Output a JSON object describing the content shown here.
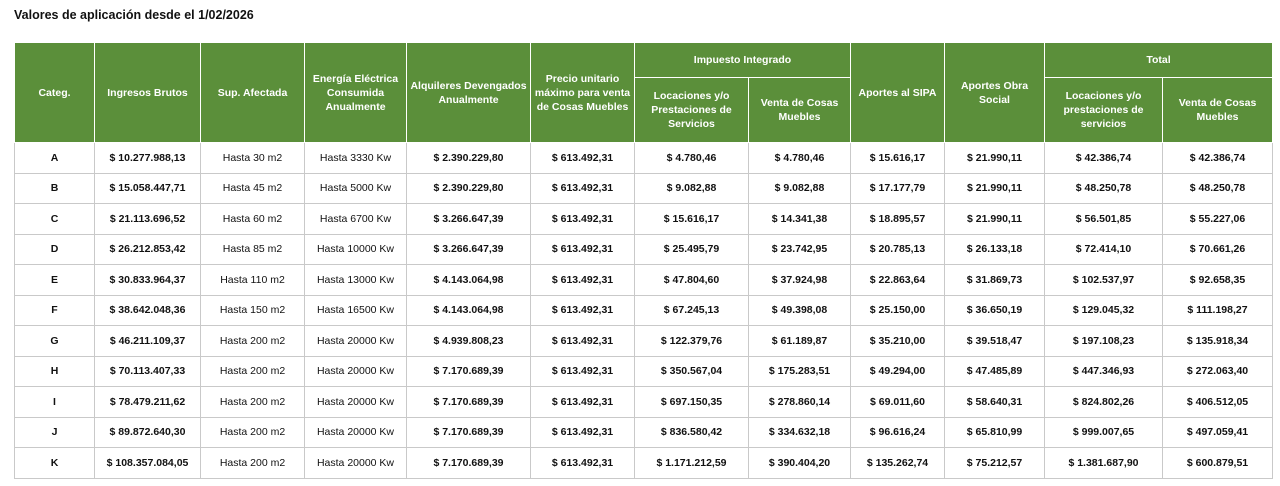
{
  "title": "Valores de aplicación desde el 1/02/2026",
  "headers": {
    "categ": "Categ.",
    "ingresos": "Ingresos Brutos",
    "superficie": "Sup. Afectada",
    "energia": "Energía Eléctrica Consumida Anualmente",
    "alquileres": "Alquileres Devengados Anualmente",
    "precio": "Precio unitario máximo para venta de Cosas Muebles",
    "impuesto_group": "Impuesto Integrado",
    "imp_locaciones": "Locaciones y/o Prestaciones de Servicios",
    "imp_venta": "Venta de Cosas Muebles",
    "sipa": "Aportes al SIPA",
    "obra_social": "Aportes Obra Social",
    "total_group": "Total",
    "tot_locaciones": "Locaciones y/o prestaciones de servicios",
    "tot_venta": "Venta de Cosas Muebles"
  },
  "rows": [
    [
      "A",
      "$ 10.277.988,13",
      "Hasta 30 m2",
      "Hasta 3330 Kw",
      "$ 2.390.229,80",
      "$ 613.492,31",
      "$ 4.780,46",
      "$ 4.780,46",
      "$ 15.616,17",
      "$ 21.990,11",
      "$ 42.386,74",
      "$ 42.386,74"
    ],
    [
      "B",
      "$ 15.058.447,71",
      "Hasta 45 m2",
      "Hasta 5000 Kw",
      "$ 2.390.229,80",
      "$ 613.492,31",
      "$ 9.082,88",
      "$ 9.082,88",
      "$ 17.177,79",
      "$ 21.990,11",
      "$ 48.250,78",
      "$ 48.250,78"
    ],
    [
      "C",
      "$ 21.113.696,52",
      "Hasta 60 m2",
      "Hasta 6700 Kw",
      "$ 3.266.647,39",
      "$ 613.492,31",
      "$ 15.616,17",
      "$ 14.341,38",
      "$ 18.895,57",
      "$ 21.990,11",
      "$ 56.501,85",
      "$ 55.227,06"
    ],
    [
      "D",
      "$ 26.212.853,42",
      "Hasta 85 m2",
      "Hasta 10000 Kw",
      "$ 3.266.647,39",
      "$ 613.492,31",
      "$ 25.495,79",
      "$ 23.742,95",
      "$ 20.785,13",
      "$ 26.133,18",
      "$ 72.414,10",
      "$ 70.661,26"
    ],
    [
      "E",
      "$ 30.833.964,37",
      "Hasta 110 m2",
      "Hasta 13000 Kw",
      "$ 4.143.064,98",
      "$ 613.492,31",
      "$ 47.804,60",
      "$ 37.924,98",
      "$ 22.863,64",
      "$ 31.869,73",
      "$ 102.537,97",
      "$ 92.658,35"
    ],
    [
      "F",
      "$ 38.642.048,36",
      "Hasta 150 m2",
      "Hasta 16500 Kw",
      "$ 4.143.064,98",
      "$ 613.492,31",
      "$ 67.245,13",
      "$ 49.398,08",
      "$ 25.150,00",
      "$ 36.650,19",
      "$ 129.045,32",
      "$ 111.198,27"
    ],
    [
      "G",
      "$ 46.211.109,37",
      "Hasta 200 m2",
      "Hasta 20000 Kw",
      "$ 4.939.808,23",
      "$ 613.492,31",
      "$ 122.379,76",
      "$ 61.189,87",
      "$ 35.210,00",
      "$ 39.518,47",
      "$ 197.108,23",
      "$ 135.918,34"
    ],
    [
      "H",
      "$ 70.113.407,33",
      "Hasta 200 m2",
      "Hasta 20000 Kw",
      "$ 7.170.689,39",
      "$ 613.492,31",
      "$ 350.567,04",
      "$ 175.283,51",
      "$ 49.294,00",
      "$ 47.485,89",
      "$ 447.346,93",
      "$ 272.063,40"
    ],
    [
      "I",
      "$ 78.479.211,62",
      "Hasta 200 m2",
      "Hasta 20000 Kw",
      "$ 7.170.689,39",
      "$ 613.492,31",
      "$ 697.150,35",
      "$ 278.860,14",
      "$ 69.011,60",
      "$ 58.640,31",
      "$ 824.802,26",
      "$ 406.512,05"
    ],
    [
      "J",
      "$ 89.872.640,30",
      "Hasta 200 m2",
      "Hasta 20000 Kw",
      "$ 7.170.689,39",
      "$ 613.492,31",
      "$ 836.580,42",
      "$ 334.632,18",
      "$ 96.616,24",
      "$ 65.810,99",
      "$ 999.007,65",
      "$ 497.059,41"
    ],
    [
      "K",
      "$ 108.357.084,05",
      "Hasta 200 m2",
      "Hasta 20000 Kw",
      "$ 7.170.689,39",
      "$ 613.492,31",
      "$ 1.171.212,59",
      "$ 390.404,20",
      "$ 135.262,74",
      "$ 75.212,57",
      "$ 1.381.687,90",
      "$ 600.879,51"
    ]
  ]
}
